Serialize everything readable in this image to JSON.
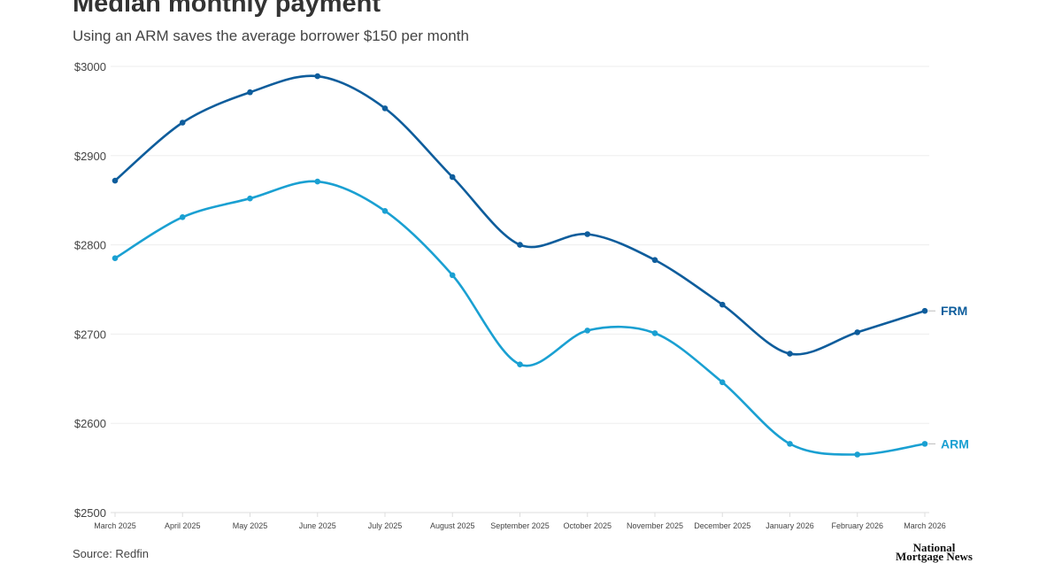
{
  "chart_data": {
    "type": "line",
    "title": "Median monthly payment",
    "subtitle": "Using an ARM saves the average borrower $150 per month",
    "source": "Source: Redfin",
    "logo": "National Mortgage News",
    "categories": [
      "March 2025",
      "April 2025",
      "May 2025",
      "June 2025",
      "July 2025",
      "August 2025",
      "September 2025",
      "October 2025",
      "November 2025",
      "December 2025",
      "January 2026",
      "February 2026",
      "March 2026"
    ],
    "yticks": [
      2500,
      2600,
      2700,
      2800,
      2900,
      3000
    ],
    "ytick_labels": [
      "$2500",
      "$2600",
      "$2700",
      "$2800",
      "$2900",
      "$3000"
    ],
    "ylim": [
      2500,
      3000
    ],
    "grid": true,
    "series": [
      {
        "name": "FRM",
        "color": "#0e5d9c",
        "values": [
          2872,
          2937,
          2971,
          2989,
          2953,
          2876,
          2800,
          2812,
          2783,
          2733,
          2678,
          2702,
          2726
        ]
      },
      {
        "name": "ARM",
        "color": "#1aa0d2",
        "values": [
          2785,
          2831,
          2852,
          2871,
          2838,
          2766,
          2666,
          2704,
          2701,
          2646,
          2577,
          2565,
          2577
        ]
      }
    ]
  }
}
